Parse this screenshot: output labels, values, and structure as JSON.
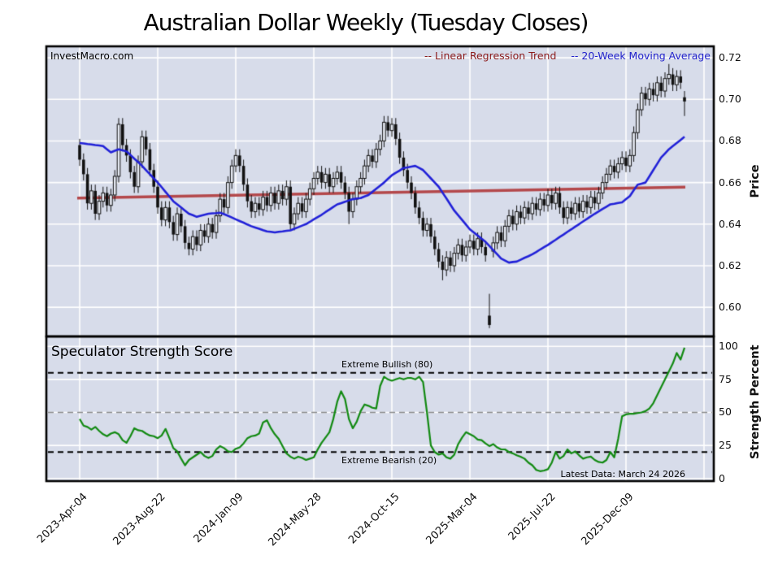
{
  "title": "Australian Dollar Weekly (Tuesday Closes)",
  "watermark": "InvestMacro.com",
  "legend": {
    "regression": "-- Linear Regression Trend",
    "ma": "-- 20-Week Moving Average"
  },
  "price_axis": {
    "label": "Price",
    "ticks": [
      0.72,
      0.7,
      0.68,
      0.66,
      0.64,
      0.62,
      0.6
    ]
  },
  "strength_axis": {
    "label": "Strength Percent",
    "ticks": [
      100,
      75,
      50,
      25,
      0
    ]
  },
  "x_axis": {
    "labels": [
      "2023-Apr-04",
      "2023-Aug-22",
      "2024-Jan-09",
      "2024-May-28",
      "2024-Oct-15",
      "2025-Mar-04",
      "2025-Jul-22",
      "2025-Dec-09"
    ],
    "tick_indices": [
      0,
      20,
      40,
      60,
      80,
      100,
      120,
      140
    ]
  },
  "annotations": {
    "panel2_title": "Speculator Strength Score",
    "bullish": "Extreme Bullish (80)",
    "bearish": "Extreme Bearish (20)",
    "latest": "Latest Data: March 24 2026"
  },
  "colors": {
    "panel_bg": "#d7dcea",
    "grid": "#ffffff",
    "candle": "#111111",
    "candle_hollow_fill": "#e9edf6",
    "ma_line": "#2121d8",
    "regression_line": "#b4484b",
    "strength_line": "#128a12",
    "legend_regression_text": "#8b1a1a",
    "legend_ma_text": "#2222cc",
    "dashed_extreme": "#000000",
    "dashed_mid": "#888888"
  },
  "chart_data": [
    {
      "type": "candlestick",
      "title": "Australian Dollar Weekly (Tuesday Closes)",
      "interval": "weekly",
      "start_date": "2023-04-04",
      "end_date": "2026-03-24",
      "ylabel": "Price",
      "ylim": [
        0.586,
        0.7255
      ],
      "series": {
        "open": [
          0.678,
          0.671,
          0.664,
          0.65,
          0.656,
          0.645,
          0.651,
          0.655,
          0.649,
          0.654,
          0.663,
          0.688,
          0.678,
          0.673,
          0.665,
          0.658,
          0.67,
          0.682,
          0.676,
          0.666,
          0.658,
          0.648,
          0.642,
          0.648,
          0.641,
          0.635,
          0.645,
          0.639,
          0.631,
          0.628,
          0.634,
          0.63,
          0.637,
          0.634,
          0.64,
          0.636,
          0.644,
          0.652,
          0.648,
          0.66,
          0.668,
          0.673,
          0.668,
          0.659,
          0.651,
          0.646,
          0.65,
          0.647,
          0.653,
          0.649,
          0.655,
          0.65,
          0.656,
          0.652,
          0.658,
          0.64,
          0.645,
          0.65,
          0.646,
          0.652,
          0.657,
          0.662,
          0.665,
          0.66,
          0.664,
          0.658,
          0.662,
          0.665,
          0.66,
          0.655,
          0.646,
          0.652,
          0.658,
          0.662,
          0.668,
          0.673,
          0.67,
          0.676,
          0.68,
          0.689,
          0.685,
          0.688,
          0.681,
          0.672,
          0.666,
          0.66,
          0.655,
          0.648,
          0.643,
          0.637,
          0.64,
          0.634,
          0.628,
          0.622,
          0.618,
          0.624,
          0.62,
          0.626,
          0.63,
          0.625,
          0.629,
          0.632,
          0.628,
          0.633,
          0.629,
          0.596,
          0.627,
          0.631,
          0.636,
          0.632,
          0.639,
          0.644,
          0.64,
          0.646,
          0.643,
          0.648,
          0.645,
          0.65,
          0.647,
          0.652,
          0.649,
          0.654,
          0.65,
          0.655,
          0.648,
          0.643,
          0.648,
          0.645,
          0.65,
          0.646,
          0.651,
          0.648,
          0.653,
          0.65,
          0.655,
          0.66,
          0.664,
          0.668,
          0.665,
          0.669,
          0.672,
          0.668,
          0.673,
          0.684,
          0.695,
          0.703,
          0.7,
          0.705,
          0.702,
          0.708,
          0.704,
          0.71,
          0.712,
          0.707,
          0.711,
          0.701
        ],
        "high": [
          0.681,
          0.674,
          0.667,
          0.659,
          0.659,
          0.654,
          0.658,
          0.658,
          0.657,
          0.666,
          0.691,
          0.691,
          0.681,
          0.676,
          0.668,
          0.673,
          0.685,
          0.685,
          0.679,
          0.669,
          0.661,
          0.651,
          0.651,
          0.651,
          0.644,
          0.648,
          0.648,
          0.642,
          0.634,
          0.637,
          0.637,
          0.64,
          0.64,
          0.643,
          0.643,
          0.647,
          0.655,
          0.655,
          0.663,
          0.671,
          0.676,
          0.676,
          0.671,
          0.662,
          0.654,
          0.653,
          0.653,
          0.656,
          0.656,
          0.658,
          0.658,
          0.659,
          0.659,
          0.661,
          0.661,
          0.648,
          0.653,
          0.653,
          0.655,
          0.66,
          0.665,
          0.668,
          0.668,
          0.667,
          0.667,
          0.665,
          0.668,
          0.668,
          0.663,
          0.658,
          0.655,
          0.661,
          0.665,
          0.671,
          0.676,
          0.676,
          0.679,
          0.683,
          0.692,
          0.692,
          0.691,
          0.691,
          0.684,
          0.675,
          0.669,
          0.663,
          0.658,
          0.651,
          0.646,
          0.643,
          0.643,
          0.637,
          0.631,
          0.625,
          0.627,
          0.627,
          0.629,
          0.633,
          0.633,
          0.632,
          0.635,
          0.635,
          0.636,
          0.636,
          0.632,
          0.6065,
          0.634,
          0.639,
          0.639,
          0.642,
          0.647,
          0.647,
          0.649,
          0.649,
          0.651,
          0.651,
          0.653,
          0.653,
          0.655,
          0.655,
          0.657,
          0.657,
          0.658,
          0.658,
          0.651,
          0.651,
          0.651,
          0.653,
          0.653,
          0.654,
          0.654,
          0.656,
          0.656,
          0.658,
          0.663,
          0.667,
          0.671,
          0.671,
          0.672,
          0.675,
          0.675,
          0.676,
          0.687,
          0.698,
          0.706,
          0.706,
          0.708,
          0.708,
          0.711,
          0.711,
          0.713,
          0.717,
          0.715,
          0.714,
          0.714,
          0.704
        ],
        "low": [
          0.668,
          0.661,
          0.647,
          0.647,
          0.642,
          0.642,
          0.648,
          0.646,
          0.646,
          0.651,
          0.66,
          0.675,
          0.67,
          0.662,
          0.655,
          0.655,
          0.667,
          0.673,
          0.663,
          0.655,
          0.645,
          0.639,
          0.639,
          0.638,
          0.632,
          0.632,
          0.636,
          0.628,
          0.625,
          0.625,
          0.627,
          0.627,
          0.631,
          0.631,
          0.633,
          0.633,
          0.641,
          0.645,
          0.645,
          0.657,
          0.665,
          0.665,
          0.656,
          0.648,
          0.643,
          0.643,
          0.644,
          0.644,
          0.646,
          0.646,
          0.647,
          0.647,
          0.649,
          0.649,
          0.637,
          0.637,
          0.642,
          0.643,
          0.643,
          0.649,
          0.654,
          0.659,
          0.657,
          0.657,
          0.655,
          0.655,
          0.659,
          0.657,
          0.652,
          0.64,
          0.643,
          0.649,
          0.655,
          0.659,
          0.665,
          0.667,
          0.667,
          0.673,
          0.677,
          0.682,
          0.682,
          0.678,
          0.669,
          0.663,
          0.657,
          0.652,
          0.645,
          0.64,
          0.634,
          0.634,
          0.631,
          0.625,
          0.619,
          0.613,
          0.615,
          0.617,
          0.617,
          0.623,
          0.622,
          0.622,
          0.626,
          0.625,
          0.625,
          0.626,
          0.622,
          0.59,
          0.624,
          0.628,
          0.629,
          0.629,
          0.636,
          0.637,
          0.637,
          0.64,
          0.64,
          0.642,
          0.642,
          0.644,
          0.644,
          0.646,
          0.646,
          0.647,
          0.647,
          0.645,
          0.64,
          0.64,
          0.642,
          0.642,
          0.643,
          0.643,
          0.645,
          0.645,
          0.647,
          0.647,
          0.652,
          0.657,
          0.661,
          0.662,
          0.662,
          0.666,
          0.665,
          0.665,
          0.67,
          0.681,
          0.692,
          0.697,
          0.697,
          0.699,
          0.699,
          0.701,
          0.701,
          0.707,
          0.704,
          0.704,
          0.705,
          0.692
        ],
        "close": [
          0.671,
          0.664,
          0.65,
          0.656,
          0.645,
          0.651,
          0.655,
          0.649,
          0.654,
          0.663,
          0.688,
          0.678,
          0.673,
          0.665,
          0.658,
          0.67,
          0.682,
          0.676,
          0.666,
          0.658,
          0.648,
          0.642,
          0.648,
          0.641,
          0.635,
          0.645,
          0.639,
          0.631,
          0.628,
          0.634,
          0.63,
          0.637,
          0.634,
          0.64,
          0.636,
          0.644,
          0.652,
          0.648,
          0.66,
          0.668,
          0.673,
          0.668,
          0.659,
          0.651,
          0.646,
          0.65,
          0.647,
          0.653,
          0.649,
          0.655,
          0.65,
          0.656,
          0.652,
          0.658,
          0.64,
          0.645,
          0.65,
          0.646,
          0.652,
          0.657,
          0.662,
          0.665,
          0.66,
          0.664,
          0.658,
          0.662,
          0.665,
          0.66,
          0.655,
          0.646,
          0.652,
          0.658,
          0.662,
          0.668,
          0.673,
          0.67,
          0.676,
          0.68,
          0.689,
          0.685,
          0.688,
          0.681,
          0.672,
          0.666,
          0.66,
          0.655,
          0.648,
          0.643,
          0.637,
          0.64,
          0.634,
          0.628,
          0.622,
          0.618,
          0.624,
          0.62,
          0.626,
          0.63,
          0.625,
          0.629,
          0.632,
          0.628,
          0.633,
          0.629,
          0.625,
          0.5915,
          0.631,
          0.636,
          0.632,
          0.639,
          0.644,
          0.64,
          0.646,
          0.643,
          0.648,
          0.645,
          0.65,
          0.647,
          0.652,
          0.649,
          0.654,
          0.65,
          0.655,
          0.648,
          0.643,
          0.648,
          0.645,
          0.65,
          0.646,
          0.651,
          0.648,
          0.653,
          0.65,
          0.655,
          0.66,
          0.664,
          0.668,
          0.665,
          0.669,
          0.672,
          0.668,
          0.673,
          0.684,
          0.695,
          0.703,
          0.7,
          0.705,
          0.702,
          0.708,
          0.704,
          0.71,
          0.712,
          0.707,
          0.711,
          0.708,
          0.699
        ]
      },
      "overlays": [
        {
          "name": "20-Week Moving Average",
          "type": "line",
          "values": [
            0.679,
            0.6788,
            0.6785,
            0.6783,
            0.678,
            0.6778,
            0.6775,
            0.676,
            0.6745,
            0.6753,
            0.676,
            0.6755,
            0.675,
            0.6733,
            0.6715,
            0.6698,
            0.668,
            0.666,
            0.664,
            0.662,
            0.66,
            0.6578,
            0.6555,
            0.6533,
            0.651,
            0.6495,
            0.648,
            0.6465,
            0.645,
            0.6443,
            0.6435,
            0.644,
            0.6445,
            0.645,
            0.6452,
            0.6453,
            0.6455,
            0.6448,
            0.644,
            0.6432,
            0.6423,
            0.6415,
            0.6407,
            0.6398,
            0.639,
            0.6384,
            0.6378,
            0.6371,
            0.6365,
            0.6363,
            0.636,
            0.6363,
            0.6365,
            0.6368,
            0.637,
            0.6378,
            0.6385,
            0.6393,
            0.64,
            0.6411,
            0.6423,
            0.6434,
            0.6445,
            0.6458,
            0.647,
            0.6483,
            0.6495,
            0.6501,
            0.6508,
            0.6514,
            0.652,
            0.6523,
            0.6525,
            0.6533,
            0.654,
            0.6555,
            0.657,
            0.6585,
            0.66,
            0.6618,
            0.6635,
            0.6647,
            0.6658,
            0.667,
            0.6673,
            0.6677,
            0.668,
            0.667,
            0.666,
            0.664,
            0.662,
            0.66,
            0.658,
            0.6551,
            0.6523,
            0.6494,
            0.6465,
            0.6443,
            0.642,
            0.6398,
            0.6375,
            0.636,
            0.6345,
            0.633,
            0.6315,
            0.6295,
            0.6275,
            0.6255,
            0.6235,
            0.6225,
            0.6215,
            0.6218,
            0.622,
            0.6229,
            0.6238,
            0.6246,
            0.6255,
            0.6266,
            0.6278,
            0.6289,
            0.63,
            0.6313,
            0.6325,
            0.6338,
            0.635,
            0.6363,
            0.6375,
            0.6388,
            0.64,
            0.6413,
            0.6425,
            0.6438,
            0.645,
            0.6461,
            0.6473,
            0.6484,
            0.6495,
            0.6498,
            0.6502,
            0.6505,
            0.652,
            0.6535,
            0.6563,
            0.659,
            0.6595,
            0.66,
            0.663,
            0.666,
            0.669,
            0.672,
            0.674,
            0.676,
            0.6775,
            0.679,
            0.6805,
            0.682
          ]
        },
        {
          "name": "Linear Regression Trend",
          "type": "trendline",
          "start": 0.6525,
          "end": 0.6578
        }
      ]
    },
    {
      "type": "line",
      "title": "Speculator Strength Score",
      "ylabel": "Strength Percent",
      "ylim": [
        -2,
        107.5
      ],
      "values": [
        45,
        40,
        39,
        37,
        39,
        36,
        33.5,
        32,
        34,
        35,
        33.5,
        29,
        27,
        32,
        38,
        36.5,
        36,
        34,
        32.5,
        32,
        30.5,
        32.5,
        37.5,
        30.5,
        23,
        20.5,
        15,
        10,
        14,
        16,
        18,
        20,
        17,
        15.5,
        17,
        22,
        24.5,
        23,
        20.5,
        20,
        22.5,
        23.5,
        26.5,
        30.5,
        32,
        32.5,
        34,
        42.5,
        44,
        38,
        33.5,
        30,
        24.5,
        19,
        16.5,
        15,
        16.5,
        15.5,
        14,
        15,
        16,
        22,
        27,
        31,
        35,
        45,
        58,
        66,
        60,
        45,
        38,
        43,
        51,
        56,
        55,
        53.5,
        53,
        70,
        77,
        75,
        74,
        75,
        76,
        75,
        76,
        76,
        75,
        77,
        73,
        50,
        25,
        20,
        18,
        19,
        16,
        15,
        18,
        26,
        31,
        35,
        33.5,
        32,
        29.5,
        29,
        26.5,
        24.5,
        26,
        23.5,
        22,
        22,
        20,
        19,
        17.5,
        16.5,
        15,
        12,
        10,
        6.5,
        5.5,
        6,
        7,
        12,
        20,
        15,
        17,
        22,
        19,
        20.5,
        17.5,
        15,
        16,
        16.5,
        14,
        12.5,
        12,
        14,
        20,
        16,
        30,
        47,
        48.5,
        49,
        49,
        49.5,
        50,
        51,
        53,
        57,
        63,
        69,
        75,
        81,
        87,
        95,
        90,
        99
      ],
      "hlines": [
        {
          "label": "Extreme Bullish (80)",
          "value": 80,
          "style": "dashed",
          "color": "#000000"
        },
        {
          "label": "",
          "value": 50,
          "style": "dashed",
          "color": "#888888"
        },
        {
          "label": "Extreme Bearish (20)",
          "value": 20,
          "style": "dashed",
          "color": "#000000"
        }
      ]
    }
  ]
}
